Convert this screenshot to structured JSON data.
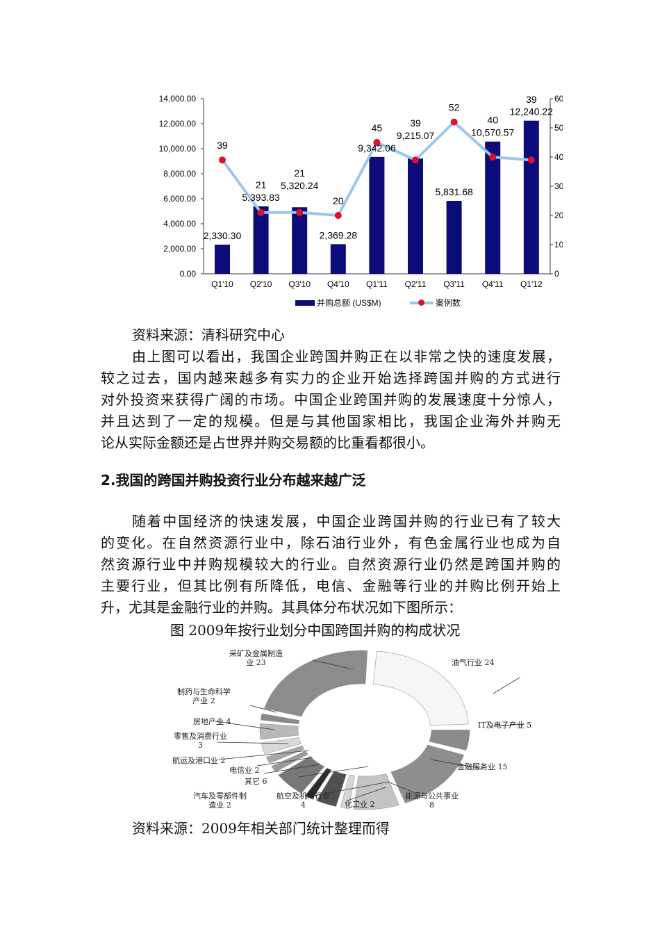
{
  "bar_chart": {
    "chart_data": {
      "type": "bar+line",
      "categories": [
        "Q1'10",
        "Q2'10",
        "Q3'10",
        "Q4'10",
        "Q1'11",
        "Q2'11",
        "Q3'11",
        "Q4'11",
        "Q1'12"
      ],
      "series": [
        {
          "name": "并购总额 (US$M)",
          "type": "bar",
          "axis": "left",
          "color": "#0b0b7a",
          "values": [
            2330.3,
            5393.83,
            5320.24,
            2369.28,
            9342.06,
            9215.07,
            5831.68,
            10570.57,
            12240.22
          ],
          "labels": [
            "2,330.30",
            "5,393.83",
            "5,320.24",
            "2,369.28",
            "9,342.06",
            "9,215.07",
            "5,831.68",
            "10,570.57",
            "12,240.22"
          ]
        },
        {
          "name": "案例数",
          "type": "line",
          "axis": "right",
          "color": "#9cc7ec",
          "marker_color": "#e0102a",
          "values": [
            39,
            21,
            21,
            20,
            45,
            39,
            52,
            40,
            39
          ]
        }
      ],
      "left_axis": {
        "range": [
          0,
          14000
        ],
        "ticks": [
          "0.00",
          "2,000.00",
          "4,000.00",
          "6,000.00",
          "8,000.00",
          "10,000.00",
          "12,000.00",
          "14,000.00"
        ]
      },
      "right_axis": {
        "range": [
          0,
          60
        ],
        "ticks": [
          "0",
          "10",
          "20",
          "30",
          "40",
          "50",
          "60"
        ]
      },
      "legend_placement": "bottom",
      "grid": false
    }
  },
  "source1": "资料来源：清科研究中心",
  "para1": [
    "由上图可以看出，我国企业跨国并购正在以非常之快的速度发展，",
    "较之过去，国内越来越多有实力的企业开始选择跨国并购的方式进行",
    "对外投资来获得广阔的市场。中国企业跨国并购的发展速度十分惊人，",
    "并且达到了一定的规模。但是与其他国家相比，我国企业海外并购无",
    "论从实际金额还是占世界并购交易额的比重看都很小。"
  ],
  "heading": "2.我国的跨国并购投资行业分布越来越广泛",
  "para2": [
    "随着中国经济的快速发展，中国企业跨国并购的行业已有了较大",
    "的变化。在自然资源行业中，除石油行业外，有色金属行业也成为自",
    "然资源行业中并购规模较大的行业。自然资源行业仍然是跨国并购的",
    "主要行业，但其比例有所降低，电信、金融等行业的并购比例开始上",
    "升，尤其是金融行业的并购。其具体分布状况如下图所示："
  ],
  "caption": "图  2009年按行业划分中国跨国并购的构成状况",
  "donut_chart": {
    "chart_data": {
      "type": "pie",
      "style": "exploded donut, grayscale",
      "slices": [
        {
          "label": [
            "油气行业 24"
          ],
          "value": 24,
          "color": "#f6f6f6"
        },
        {
          "label": [
            "IT及电子产业 5"
          ],
          "value": 5,
          "color": "#8a8a8a"
        },
        {
          "label": [
            "金融服务业 15"
          ],
          "value": 15,
          "color": "#8e8e8e"
        },
        {
          "label": [
            "能源与公共事业",
            "8"
          ],
          "value": 8,
          "color": "#c4c4c4"
        },
        {
          "label": [
            "化工业 2"
          ],
          "value": 2,
          "color": "#d6d6d6"
        },
        {
          "label": [
            "航空及机场行业",
            "4"
          ],
          "value": 4,
          "color": "#505050"
        },
        {
          "label": [
            "汽车及零部件制",
            "造业 2"
          ],
          "value": 2,
          "color": "#2c2c2c"
        },
        {
          "label": [
            "其它 6"
          ],
          "value": 6,
          "color": "#777777"
        },
        {
          "label": [
            "电信业 2"
          ],
          "value": 2,
          "color": "#9a9a9a"
        },
        {
          "label": [
            "航运及港口业 2"
          ],
          "value": 2,
          "color": "#a8a8a8"
        },
        {
          "label": [
            "零售及消费行业",
            "3"
          ],
          "value": 3,
          "color": "#d8d8d8"
        },
        {
          "label": [
            "房地产业 4"
          ],
          "value": 4,
          "color": "#b8b8b8"
        },
        {
          "label": [
            "制药与生命科学",
            "产业 2"
          ],
          "value": 2,
          "color": "#888888"
        },
        {
          "label": [
            "采矿及金属制造",
            "业 23"
          ],
          "value": 23,
          "color": "#8c8c8c"
        }
      ]
    }
  },
  "source2": "资料来源：2009年相关部门统计整理而得"
}
